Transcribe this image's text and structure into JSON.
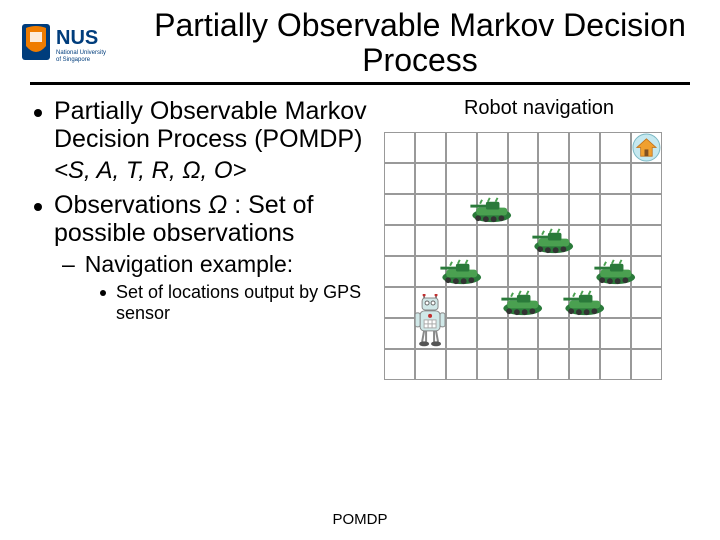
{
  "header": {
    "logo_text": "NUS",
    "logo_sub": "National University\nof Singapore",
    "logo_crest_bg": "#003d7c",
    "logo_orange": "#ef7c00",
    "title": "Partially Observable Markov Decision Process"
  },
  "left": {
    "bullet1": "Partially Observable Markov Decision Process (POMDP)",
    "tuple": "<S, A, T, R, Ω, O>",
    "bullet2a": "Observations ",
    "bullet2_omega": "Ω",
    "bullet2b": " : Set of possible observations",
    "sub1": "Navigation example:",
    "sub1a": "Set of locations output by GPS sensor"
  },
  "right": {
    "title": "Robot navigation",
    "grid": {
      "cols": 9,
      "rows": 8,
      "cell_size": 31,
      "border_color": "#999999",
      "bg": "#ffffff"
    },
    "sprites": {
      "home": {
        "col": 8,
        "row": 0,
        "bg": "#c5e8ef",
        "icon": "#f0a030"
      },
      "tanks": [
        {
          "col": 3,
          "row": 2
        },
        {
          "col": 5,
          "row": 3
        },
        {
          "col": 2,
          "row": 4
        },
        {
          "col": 7,
          "row": 4
        },
        {
          "col": 4,
          "row": 5
        },
        {
          "col": 6,
          "row": 5
        }
      ],
      "tank_body": "#2a7a3a",
      "tank_detail": "#4aa050",
      "tank_wheel": "#333333",
      "robot": {
        "col": 1,
        "row": 6,
        "body": "#d0e8e8",
        "accent": "#c03030",
        "legs": "#888888"
      }
    }
  },
  "footer": "POMDP"
}
